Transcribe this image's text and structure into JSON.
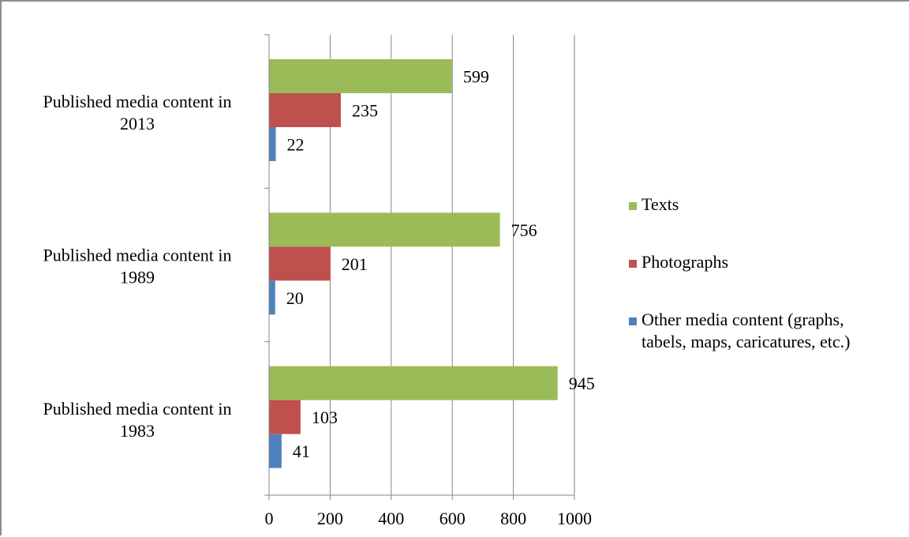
{
  "chart_data": {
    "type": "bar",
    "orientation": "horizontal",
    "categories": [
      [
        "Published media content in",
        "2013"
      ],
      [
        "Published media content in",
        "1989"
      ],
      [
        "Published media content in",
        "1983"
      ]
    ],
    "series": [
      {
        "name": "Texts",
        "color": "#9bbb59",
        "values": [
          599,
          756,
          945
        ]
      },
      {
        "name": "Photographs",
        "color": "#c0504d",
        "values": [
          235,
          201,
          103
        ]
      },
      {
        "name": "Other media content (graphs, tabels, maps, caricatures, etc.)",
        "legend_lines": [
          "Other media content (graphs,",
          "tabels, maps, caricatures, etc.)"
        ],
        "color": "#4f81bd",
        "values": [
          22,
          20,
          41
        ]
      }
    ],
    "xlim": [
      0,
      1000
    ],
    "xticks": [
      0,
      200,
      400,
      600,
      800,
      1000
    ],
    "xtick_labels": [
      "0",
      "200",
      "400",
      "600",
      "800",
      "1000"
    ],
    "grid": "vertical",
    "gridline_color": "#868686",
    "legend_position": "right",
    "data_labels": true
  }
}
